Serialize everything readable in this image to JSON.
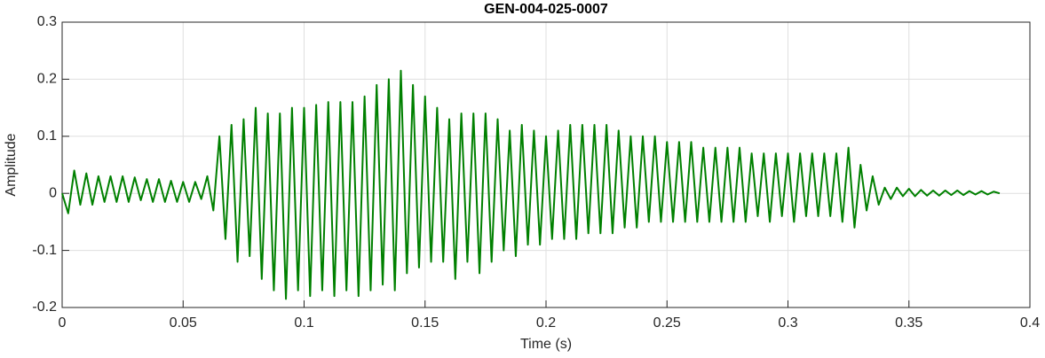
{
  "chart_data": {
    "type": "line",
    "title": "GEN-004-025-0007",
    "xlabel": "Time (s)",
    "ylabel": "Amplitude",
    "color": "#008000",
    "grid": true,
    "xlim": [
      0,
      0.4
    ],
    "xticks": [
      0,
      0.05,
      0.1,
      0.15,
      0.2,
      0.25,
      0.3,
      0.35,
      0.4
    ],
    "ylim": [
      -0.2,
      0.3
    ],
    "yticks": [
      -0.2,
      -0.1,
      0,
      0.1,
      0.2,
      0.3
    ],
    "x": [
      0,
      0.0025,
      0.005,
      0.0075,
      0.01,
      0.0125,
      0.015,
      0.0175,
      0.02,
      0.0225,
      0.025,
      0.0275,
      0.03,
      0.0325,
      0.035,
      0.0375,
      0.04,
      0.0425,
      0.045,
      0.0475,
      0.05,
      0.0525,
      0.055,
      0.0575,
      0.06,
      0.0625,
      0.065,
      0.0675,
      0.07,
      0.0725,
      0.075,
      0.0775,
      0.08,
      0.0825,
      0.085,
      0.0875,
      0.09,
      0.0925,
      0.095,
      0.0975,
      0.1,
      0.1025,
      0.105,
      0.1075,
      0.11,
      0.1125,
      0.115,
      0.1175,
      0.12,
      0.1225,
      0.125,
      0.1275,
      0.13,
      0.1325,
      0.135,
      0.1375,
      0.14,
      0.1425,
      0.145,
      0.1475,
      0.15,
      0.1525,
      0.155,
      0.1575,
      0.16,
      0.1625,
      0.165,
      0.1675,
      0.17,
      0.1725,
      0.175,
      0.1775,
      0.18,
      0.1825,
      0.185,
      0.1875,
      0.19,
      0.1925,
      0.195,
      0.1975,
      0.2,
      0.2025,
      0.205,
      0.2075,
      0.21,
      0.2125,
      0.215,
      0.2175,
      0.22,
      0.2225,
      0.225,
      0.2275,
      0.23,
      0.2325,
      0.235,
      0.2375,
      0.24,
      0.2425,
      0.245,
      0.2475,
      0.25,
      0.2525,
      0.255,
      0.2575,
      0.26,
      0.2625,
      0.265,
      0.2675,
      0.27,
      0.2725,
      0.275,
      0.2775,
      0.28,
      0.2825,
      0.285,
      0.2875,
      0.29,
      0.2925,
      0.295,
      0.2975,
      0.3,
      0.3025,
      0.305,
      0.3075,
      0.31,
      0.3125,
      0.315,
      0.3175,
      0.32,
      0.3225,
      0.325,
      0.3275,
      0.33,
      0.3325,
      0.335,
      0.3375,
      0.34,
      0.3425,
      0.345,
      0.3475,
      0.35,
      0.3525,
      0.355,
      0.3575,
      0.36,
      0.3625,
      0.365,
      0.3675,
      0.37,
      0.3725,
      0.375,
      0.3775,
      0.38,
      0.3825,
      0.385,
      0.3875
    ],
    "values": [
      0,
      -0.035,
      0.04,
      -0.02,
      0.035,
      -0.02,
      0.03,
      -0.015,
      0.03,
      -0.015,
      0.03,
      -0.015,
      0.028,
      -0.012,
      0.025,
      -0.015,
      0.025,
      -0.015,
      0.022,
      -0.015,
      0.02,
      -0.015,
      0.02,
      -0.01,
      0.03,
      -0.03,
      0.1,
      -0.08,
      0.12,
      -0.12,
      0.13,
      -0.11,
      0.15,
      -0.15,
      0.14,
      -0.17,
      0.14,
      -0.185,
      0.15,
      -0.17,
      0.15,
      -0.18,
      0.155,
      -0.17,
      0.16,
      -0.18,
      0.16,
      -0.17,
      0.16,
      -0.18,
      0.17,
      -0.17,
      0.19,
      -0.16,
      0.2,
      -0.17,
      0.215,
      -0.14,
      0.19,
      -0.13,
      0.17,
      -0.12,
      0.15,
      -0.12,
      0.13,
      -0.15,
      0.14,
      -0.12,
      0.14,
      -0.14,
      0.14,
      -0.12,
      0.13,
      -0.1,
      0.11,
      -0.11,
      0.12,
      -0.09,
      0.11,
      -0.09,
      0.1,
      -0.08,
      0.11,
      -0.08,
      0.12,
      -0.08,
      0.12,
      -0.07,
      0.12,
      -0.07,
      0.12,
      -0.07,
      0.11,
      -0.06,
      0.1,
      -0.06,
      0.1,
      -0.05,
      0.1,
      -0.05,
      0.09,
      -0.05,
      0.09,
      -0.05,
      0.09,
      -0.05,
      0.08,
      -0.05,
      0.08,
      -0.05,
      0.08,
      -0.05,
      0.08,
      -0.05,
      0.07,
      -0.04,
      0.07,
      -0.05,
      0.07,
      -0.04,
      0.07,
      -0.05,
      0.07,
      -0.04,
      0.07,
      -0.04,
      0.07,
      -0.04,
      0.07,
      -0.05,
      0.08,
      -0.06,
      0.05,
      -0.03,
      0.03,
      -0.02,
      0.01,
      -0.01,
      0.01,
      -0.005,
      0.008,
      -0.005,
      0.006,
      -0.004,
      0.005,
      -0.004,
      0.005,
      -0.003,
      0.005,
      -0.003,
      0.004,
      -0.002,
      0.004,
      -0.002,
      0.003,
      0
    ]
  }
}
